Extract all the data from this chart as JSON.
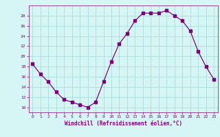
{
  "x": [
    0,
    1,
    2,
    3,
    4,
    5,
    6,
    7,
    8,
    9,
    10,
    11,
    12,
    13,
    14,
    15,
    16,
    17,
    18,
    19,
    20,
    21,
    22,
    23
  ],
  "y": [
    18.5,
    16.5,
    15.0,
    13.0,
    11.5,
    11.0,
    10.5,
    10.0,
    11.0,
    15.0,
    19.0,
    22.5,
    24.5,
    27.0,
    28.5,
    28.5,
    28.5,
    29.0,
    28.0,
    27.0,
    25.0,
    21.0,
    18.0,
    15.5
  ],
  "line_color": "#800080",
  "marker": "s",
  "marker_size": 2.5,
  "bg_color": "#d6f5f5",
  "grid_color": "#aadddd",
  "xlabel": "Windchill (Refroidissement éolien,°C)",
  "xlabel_color": "#800080",
  "tick_color": "#800080",
  "ylim": [
    9,
    30
  ],
  "xlim": [
    -0.5,
    23.5
  ],
  "yticks": [
    10,
    12,
    14,
    16,
    18,
    20,
    22,
    24,
    26,
    28
  ],
  "xticks": [
    0,
    1,
    2,
    3,
    4,
    5,
    6,
    7,
    8,
    9,
    10,
    11,
    12,
    13,
    14,
    15,
    16,
    17,
    18,
    19,
    20,
    21,
    22,
    23
  ]
}
